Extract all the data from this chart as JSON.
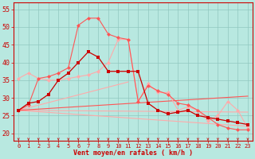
{
  "bg_color": "#b8e8e0",
  "grid_color": "#90c8c0",
  "line_color_dark_red": "#cc0000",
  "line_color_mid_red": "#ff5555",
  "line_color_light_red": "#ffaaaa",
  "xlabel": "Vent moyen/en rafales ( km/h )",
  "xlabel_color": "#cc0000",
  "tick_color": "#cc0000",
  "xlim": [
    -0.5,
    23.5
  ],
  "ylim": [
    18,
    57
  ],
  "yticks": [
    20,
    25,
    30,
    35,
    40,
    45,
    50,
    55
  ],
  "xticks": [
    0,
    1,
    2,
    3,
    4,
    5,
    6,
    7,
    8,
    9,
    10,
    11,
    12,
    13,
    14,
    15,
    16,
    17,
    18,
    19,
    20,
    21,
    22,
    23
  ],
  "series": {
    "trend1_x": [
      0,
      23
    ],
    "trend1_y": [
      26.5,
      22.0
    ],
    "trend2_x": [
      0,
      23
    ],
    "trend2_y": [
      26.5,
      26.0
    ],
    "trend3_x": [
      0,
      11
    ],
    "trend3_y": [
      26.5,
      34.5
    ],
    "trend4_x": [
      0,
      23
    ],
    "trend4_y": [
      26.5,
      30.5
    ],
    "line_light_x": [
      0,
      1,
      2,
      3,
      4,
      5,
      6,
      7,
      8,
      9,
      10,
      11,
      12,
      13,
      14,
      15,
      16,
      17,
      18,
      19,
      20,
      21,
      22,
      23
    ],
    "line_light_y": [
      35.5,
      37.0,
      35.5,
      35.0,
      35.0,
      35.5,
      36.0,
      36.5,
      37.5,
      40.0,
      46.5,
      46.5,
      29.0,
      34.0,
      31.5,
      31.5,
      26.5,
      27.5,
      26.5,
      23.5,
      25.0,
      29.0,
      26.5,
      21.5
    ],
    "line_dark_x": [
      0,
      1,
      2,
      3,
      4,
      5,
      6,
      7,
      8,
      9,
      10,
      11,
      12,
      13,
      14,
      15,
      16,
      17,
      18,
      19,
      20,
      21,
      22,
      23
    ],
    "line_dark_y": [
      26.5,
      28.5,
      29.0,
      31.0,
      35.0,
      37.0,
      40.0,
      43.0,
      41.5,
      37.5,
      37.5,
      37.5,
      37.5,
      28.5,
      26.5,
      25.5,
      26.0,
      26.5,
      25.0,
      24.5,
      24.0,
      23.5,
      23.0,
      22.5
    ],
    "line_pink_x": [
      0,
      1,
      2,
      3,
      4,
      5,
      6,
      7,
      8,
      9,
      10,
      11,
      12,
      13,
      14,
      15,
      16,
      17,
      18,
      19,
      20,
      21,
      22,
      23
    ],
    "line_pink_y": [
      26.5,
      28.0,
      35.5,
      36.0,
      37.0,
      38.5,
      50.5,
      52.5,
      52.5,
      48.0,
      47.0,
      46.5,
      29.0,
      33.5,
      32.0,
      31.0,
      28.5,
      28.0,
      26.5,
      24.5,
      22.5,
      21.5,
      21.0,
      21.0
    ]
  }
}
